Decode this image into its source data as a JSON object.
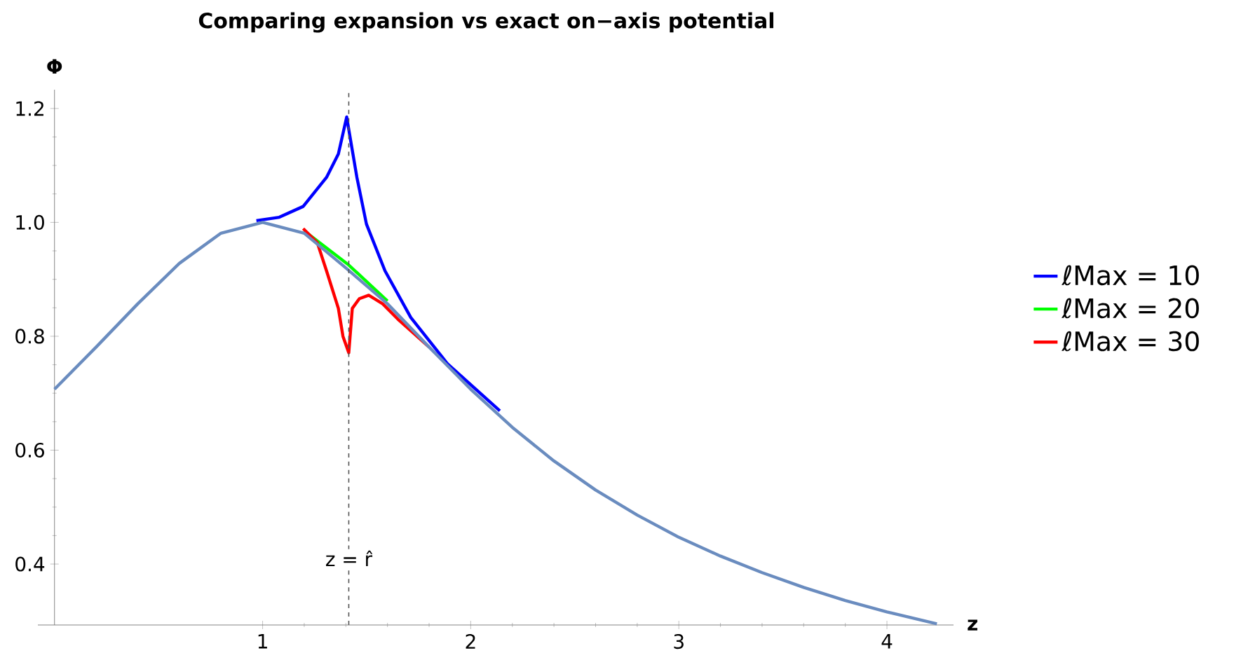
{
  "chart_data": {
    "type": "line",
    "title": "Comparing expansion vs exact on−axis potential",
    "xlabel": "z",
    "ylabel": "Φ",
    "xlim": [
      -0.08,
      4.32
    ],
    "ylim": [
      0.293,
      1.233
    ],
    "xticks": [
      1,
      2,
      3,
      4
    ],
    "yticks": [
      {
        "value": 0.4,
        "label": "0.4"
      },
      {
        "value": 0.6,
        "label": "0.6"
      },
      {
        "value": 0.8,
        "label": "0.8"
      },
      {
        "value": 1.0,
        "label": "1.0"
      },
      {
        "value": 1.2,
        "label": "1.2"
      }
    ],
    "legend": "right",
    "ref_lines": [
      {
        "axis": "x",
        "value": 1.414,
        "label": "z = r̂",
        "color": "#555555",
        "line_style": "dashed"
      }
    ],
    "series": [
      {
        "name": "ℓMax = 10",
        "color": "#0000ff",
        "x": [
          0.97,
          1.08,
          1.195,
          1.307,
          1.364,
          1.404,
          1.453,
          1.499,
          1.588,
          1.712,
          1.89,
          2.14
        ],
        "values": [
          1.003,
          1.009,
          1.028,
          1.079,
          1.12,
          1.185,
          1.079,
          0.997,
          0.915,
          0.833,
          0.751,
          0.669
        ]
      },
      {
        "name": "ℓMax = 20",
        "color": "#00ff00",
        "x": [
          1.2,
          1.414,
          1.6
        ],
        "values": [
          0.985,
          0.925,
          0.862
        ]
      },
      {
        "name": "ℓMax = 30",
        "color": "#ff0000",
        "x": [
          1.195,
          1.263,
          1.307,
          1.364,
          1.386,
          1.414,
          1.431,
          1.465,
          1.51,
          1.577,
          1.65,
          1.8
        ],
        "values": [
          0.989,
          0.964,
          0.915,
          0.849,
          0.8,
          0.771,
          0.849,
          0.866,
          0.872,
          0.857,
          0.83,
          0.781
        ]
      },
      {
        "color": "#6a8cbf",
        "x": [
          0,
          0.2,
          0.4,
          0.6,
          0.8,
          1.0,
          1.2,
          1.4,
          1.6,
          1.8,
          2.0,
          2.2,
          2.4,
          2.6,
          2.8,
          3.0,
          3.2,
          3.4,
          3.6,
          3.8,
          4.0,
          4.24
        ],
        "values": [
          0.707,
          0.781,
          0.857,
          0.928,
          0.981,
          1.0,
          0.981,
          0.92,
          0.857,
          0.781,
          0.707,
          0.64,
          0.581,
          0.53,
          0.486,
          0.447,
          0.414,
          0.385,
          0.359,
          0.336,
          0.316,
          0.295
        ]
      }
    ]
  }
}
